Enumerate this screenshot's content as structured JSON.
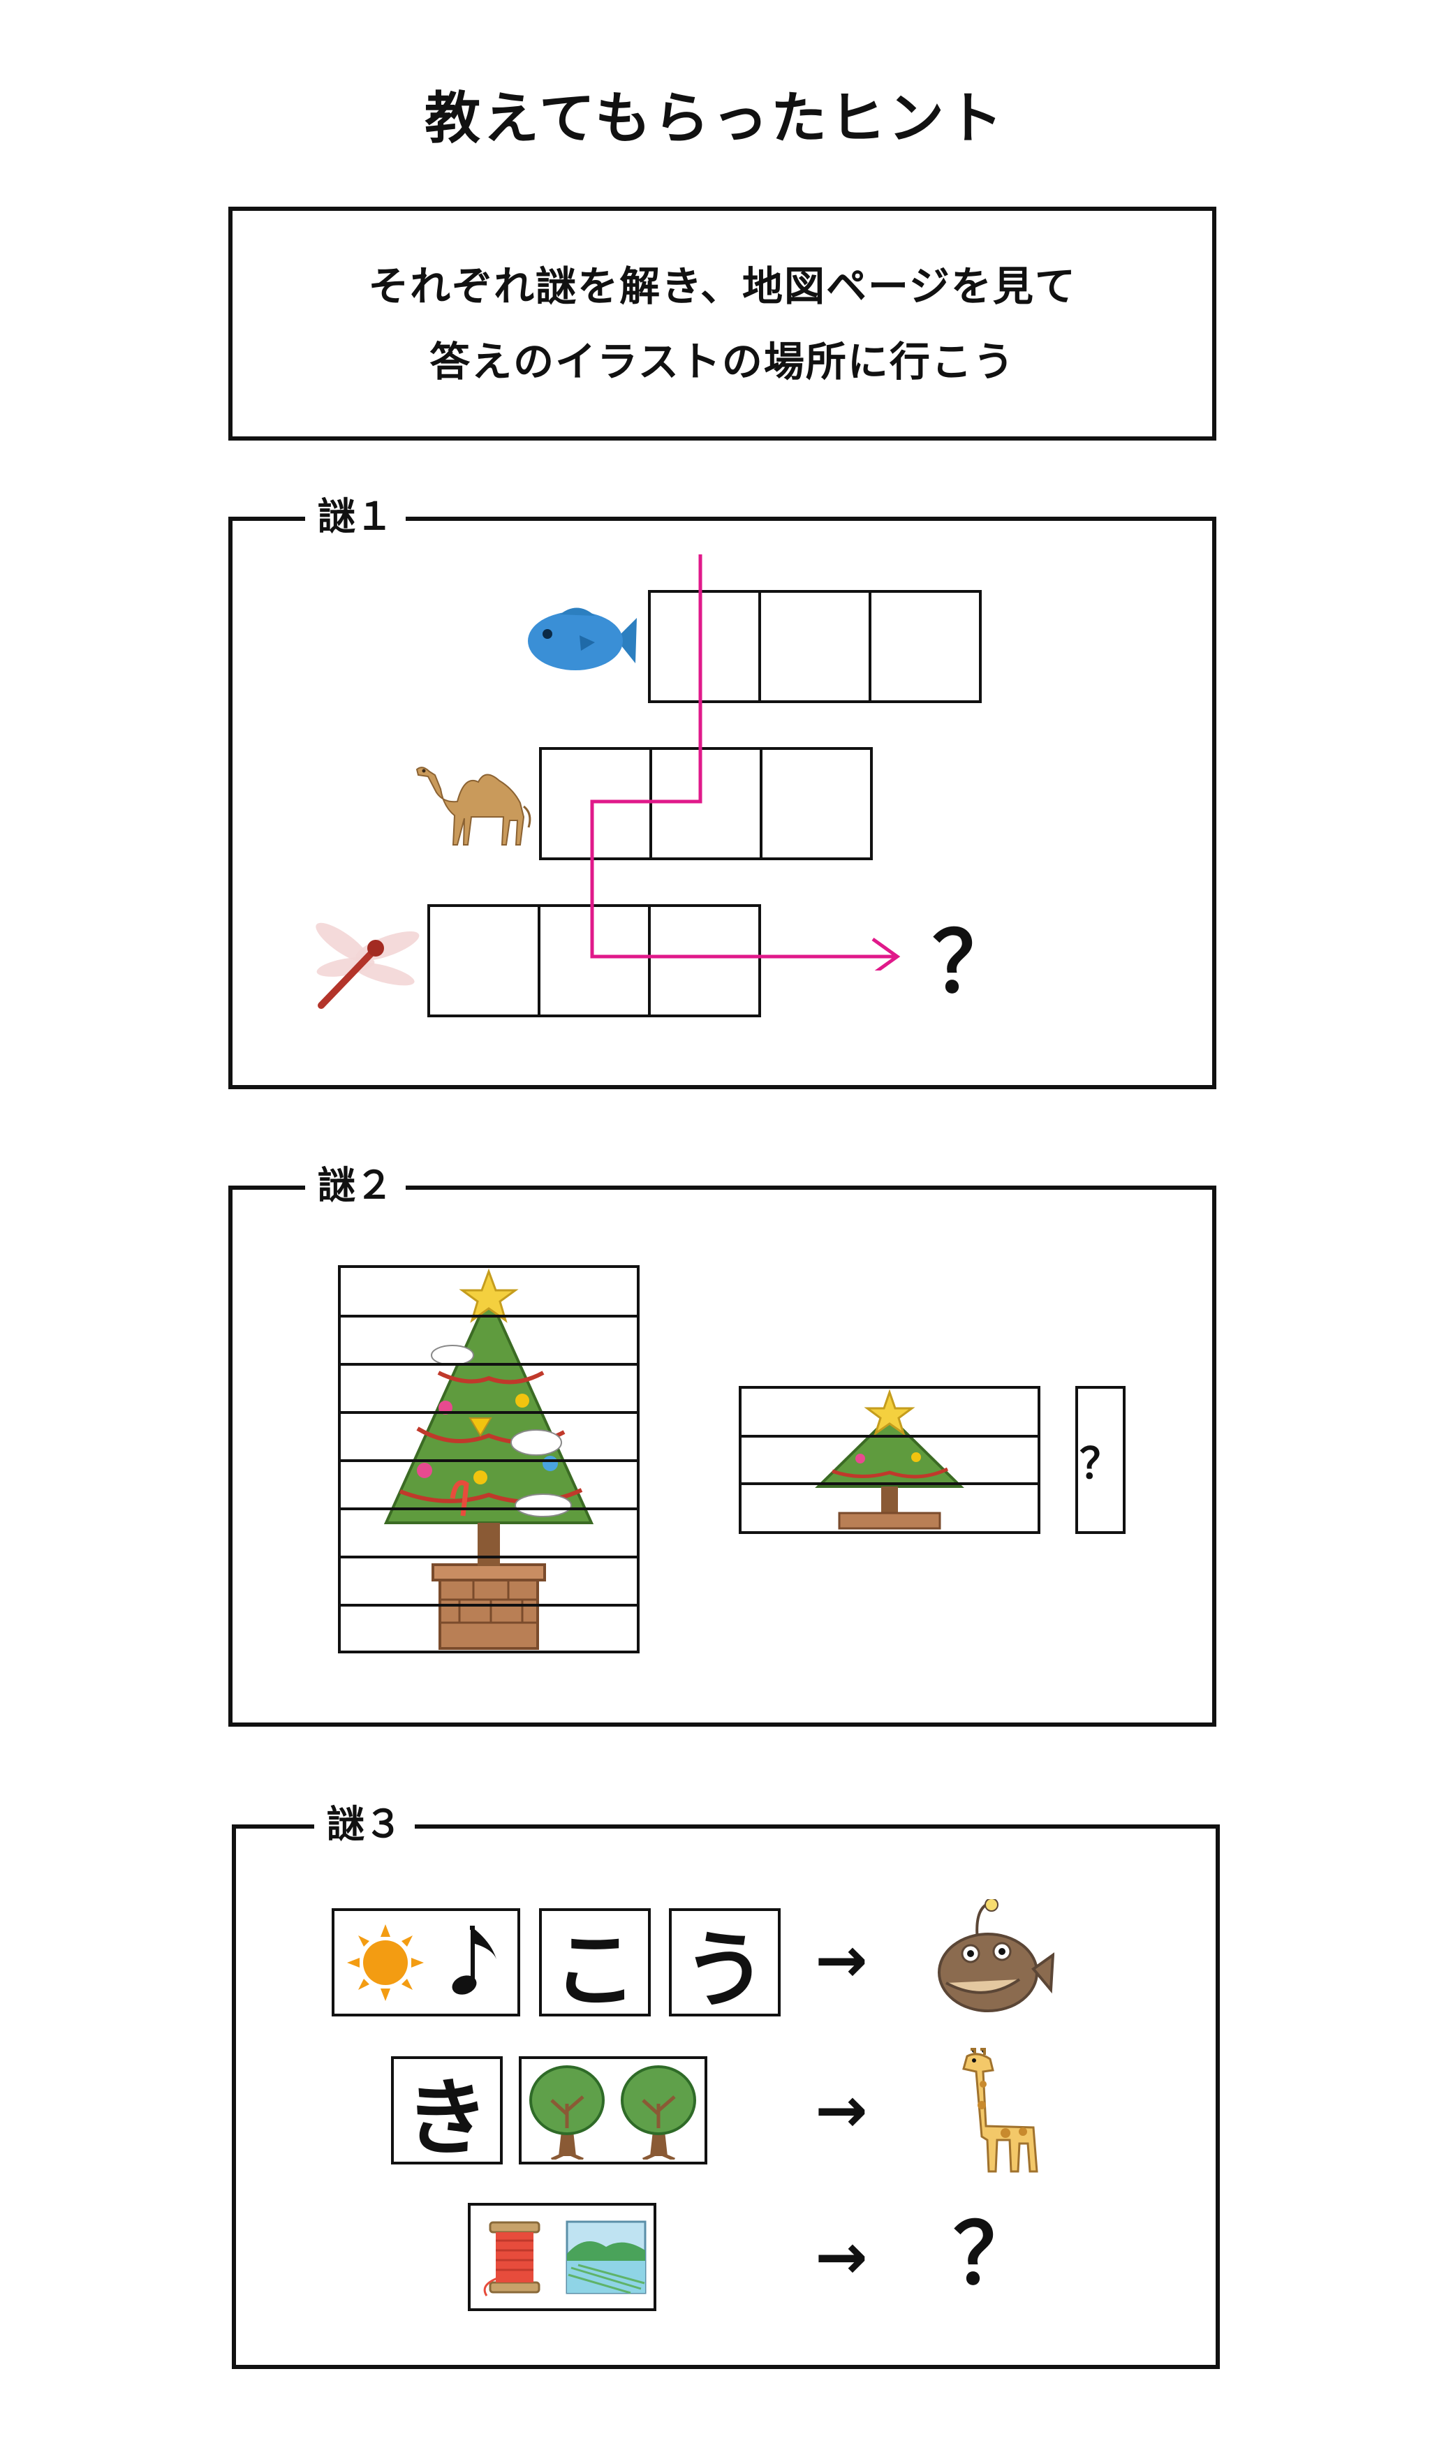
{
  "title": "教えてもらったヒント",
  "intro": {
    "line1": "それぞれ謎を解き、地図ページを見て",
    "line2": "答えのイラストの場所に行こう"
  },
  "puzzle1": {
    "label": "謎１",
    "question": "？",
    "rows": [
      "fish",
      "camel",
      "dragonfly"
    ],
    "arrow_color": "#e0198a"
  },
  "puzzle2": {
    "label": "謎２",
    "question": "？"
  },
  "puzzle3": {
    "label": "謎３",
    "row1": {
      "card2": "こ",
      "card3": "う",
      "result": "anglerfish"
    },
    "row2": {
      "card1": "き",
      "result": "giraffe"
    },
    "row3": {
      "result": "？"
    },
    "arrow": "→"
  },
  "colors": {
    "border": "#111111",
    "accent": "#e0198a"
  }
}
